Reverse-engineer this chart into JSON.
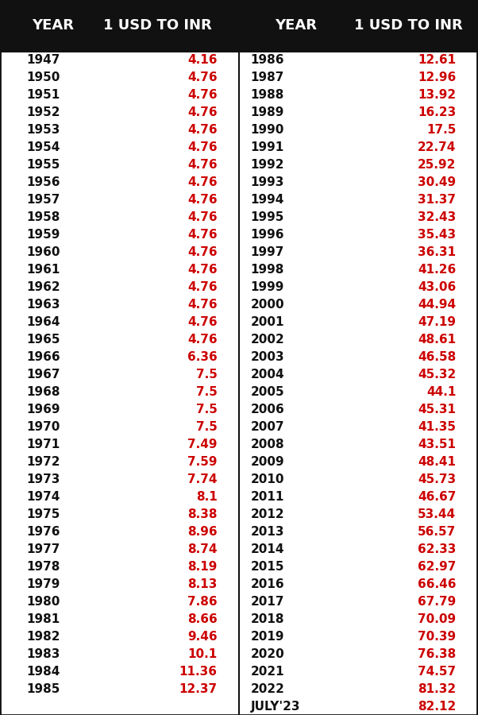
{
  "left_col": [
    [
      "1947",
      "4.16"
    ],
    [
      "1950",
      "4.76"
    ],
    [
      "1951",
      "4.76"
    ],
    [
      "1952",
      "4.76"
    ],
    [
      "1953",
      "4.76"
    ],
    [
      "1954",
      "4.76"
    ],
    [
      "1955",
      "4.76"
    ],
    [
      "1956",
      "4.76"
    ],
    [
      "1957",
      "4.76"
    ],
    [
      "1958",
      "4.76"
    ],
    [
      "1959",
      "4.76"
    ],
    [
      "1960",
      "4.76"
    ],
    [
      "1961",
      "4.76"
    ],
    [
      "1962",
      "4.76"
    ],
    [
      "1963",
      "4.76"
    ],
    [
      "1964",
      "4.76"
    ],
    [
      "1965",
      "4.76"
    ],
    [
      "1966",
      "6.36"
    ],
    [
      "1967",
      "7.5"
    ],
    [
      "1968",
      "7.5"
    ],
    [
      "1969",
      "7.5"
    ],
    [
      "1970",
      "7.5"
    ],
    [
      "1971",
      "7.49"
    ],
    [
      "1972",
      "7.59"
    ],
    [
      "1973",
      "7.74"
    ],
    [
      "1974",
      "8.1"
    ],
    [
      "1975",
      "8.38"
    ],
    [
      "1976",
      "8.96"
    ],
    [
      "1977",
      "8.74"
    ],
    [
      "1978",
      "8.19"
    ],
    [
      "1979",
      "8.13"
    ],
    [
      "1980",
      "7.86"
    ],
    [
      "1981",
      "8.66"
    ],
    [
      "1982",
      "9.46"
    ],
    [
      "1983",
      "10.1"
    ],
    [
      "1984",
      "11.36"
    ],
    [
      "1985",
      "12.37"
    ]
  ],
  "right_col": [
    [
      "1986",
      "12.61"
    ],
    [
      "1987",
      "12.96"
    ],
    [
      "1988",
      "13.92"
    ],
    [
      "1989",
      "16.23"
    ],
    [
      "1990",
      "17.5"
    ],
    [
      "1991",
      "22.74"
    ],
    [
      "1992",
      "25.92"
    ],
    [
      "1993",
      "30.49"
    ],
    [
      "1994",
      "31.37"
    ],
    [
      "1995",
      "32.43"
    ],
    [
      "1996",
      "35.43"
    ],
    [
      "1997",
      "36.31"
    ],
    [
      "1998",
      "41.26"
    ],
    [
      "1999",
      "43.06"
    ],
    [
      "2000",
      "44.94"
    ],
    [
      "2001",
      "47.19"
    ],
    [
      "2002",
      "48.61"
    ],
    [
      "2003",
      "46.58"
    ],
    [
      "2004",
      "45.32"
    ],
    [
      "2005",
      "44.1"
    ],
    [
      "2006",
      "45.31"
    ],
    [
      "2007",
      "41.35"
    ],
    [
      "2008",
      "43.51"
    ],
    [
      "2009",
      "48.41"
    ],
    [
      "2010",
      "45.73"
    ],
    [
      "2011",
      "46.67"
    ],
    [
      "2012",
      "53.44"
    ],
    [
      "2013",
      "56.57"
    ],
    [
      "2014",
      "62.33"
    ],
    [
      "2015",
      "62.97"
    ],
    [
      "2016",
      "66.46"
    ],
    [
      "2017",
      "67.79"
    ],
    [
      "2018",
      "70.09"
    ],
    [
      "2019",
      "70.39"
    ],
    [
      "2020",
      "76.38"
    ],
    [
      "2021",
      "74.57"
    ],
    [
      "2022",
      "81.32"
    ],
    [
      "JULY'23",
      "82.12"
    ]
  ],
  "header_bg": "#111111",
  "header_text_color": "#ffffff",
  "body_bg": "#ffffff",
  "year_color": "#111111",
  "value_color": "#cc0000",
  "divider_color": "#111111",
  "header_left1": "YEAR",
  "header_left2": "1 USD TO INR",
  "header_right1": "YEAR",
  "header_right2": "1 USD TO INR",
  "header_fontsize": 13,
  "data_fontsize": 11
}
